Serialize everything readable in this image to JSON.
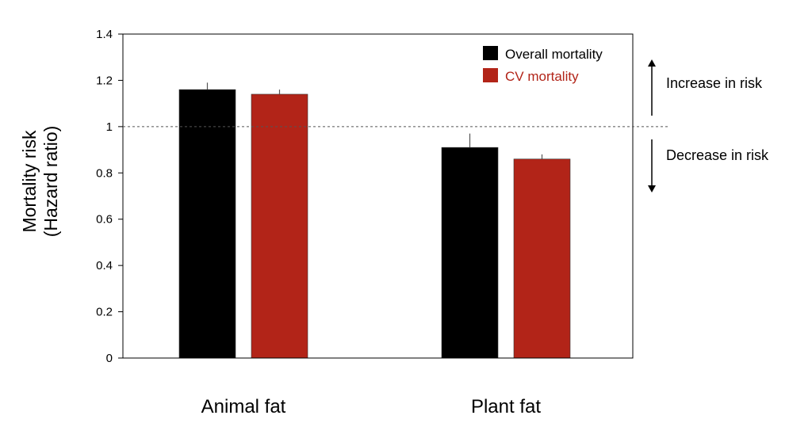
{
  "chart_data": {
    "type": "bar",
    "categories": [
      "Animal fat",
      "Plant fat"
    ],
    "series": [
      {
        "name": "Overall mortality",
        "values": [
          1.16,
          0.91
        ],
        "error_upper": [
          0.03,
          0.06
        ],
        "color": "#000000"
      },
      {
        "name": "CV mortality",
        "values": [
          1.14,
          0.86
        ],
        "error_upper": [
          0.02,
          0.02
        ],
        "color": "#b22418"
      }
    ],
    "ylabel_lines": [
      "Mortality risk",
      "(Hazard ratio)"
    ],
    "ylim": [
      0,
      1.4
    ],
    "yticks": [
      0,
      0.2,
      0.4,
      0.6,
      0.8,
      1,
      1.2,
      1.4
    ],
    "ytick_labels": [
      "0",
      "0.2",
      "0.4",
      "0.6",
      "0.8",
      "1",
      "1.2",
      "1.4"
    ],
    "reference_line": 1,
    "legend_position": "top-right",
    "grid": false,
    "annotations": {
      "increase": "Increase in risk",
      "decrease": "Decrease in risk"
    }
  }
}
